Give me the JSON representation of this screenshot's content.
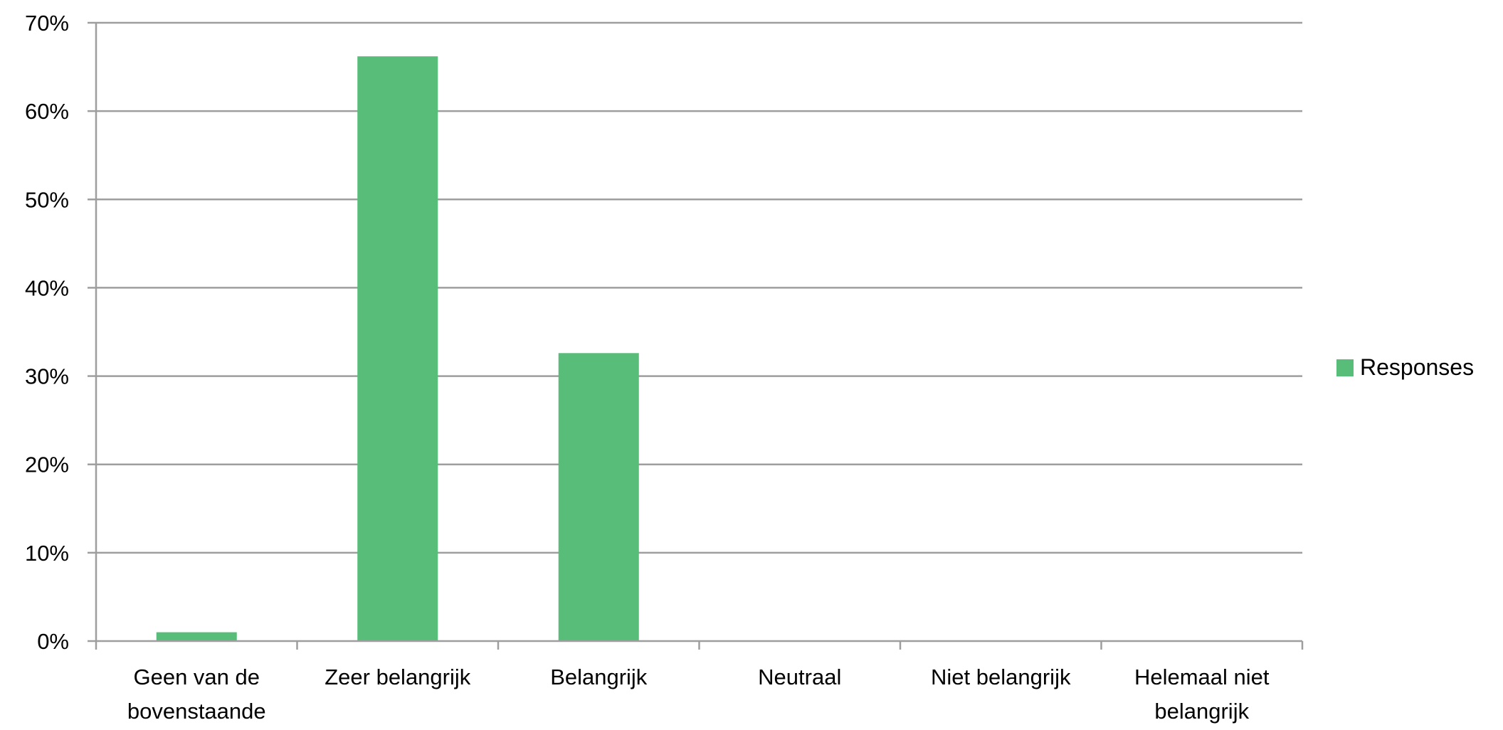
{
  "chart_data": {
    "type": "bar",
    "categories": [
      [
        "Geen van de",
        "bovenstaande"
      ],
      [
        "Zeer belangrijk"
      ],
      [
        "Belangrijk"
      ],
      [
        "Neutraal"
      ],
      [
        "Niet belangrijk"
      ],
      [
        "Helemaal niet",
        "belangrijk"
      ]
    ],
    "series": [
      {
        "name": "Responses",
        "values": [
          0.01,
          0.662,
          0.326,
          0,
          0,
          0
        ],
        "color": "#57bd78"
      }
    ],
    "ylim": [
      0,
      0.7
    ],
    "yticks": [
      0,
      0.1,
      0.2,
      0.3,
      0.4,
      0.5,
      0.6,
      0.7
    ],
    "ytick_labels": [
      "0%",
      "10%",
      "20%",
      "30%",
      "40%",
      "50%",
      "60%",
      "70%"
    ],
    "grid": true,
    "grid_color": "#9e9e9e",
    "legend_position": "right"
  }
}
